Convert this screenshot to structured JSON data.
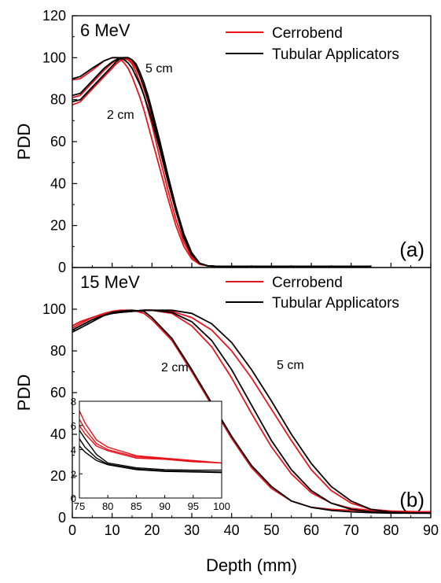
{
  "figure": {
    "xlabel": "Depth (mm)"
  },
  "colors": {
    "cerrobend": "#e8141b",
    "tubular": "#000000"
  },
  "chart_data": [
    {
      "type": "line",
      "panel_label": "(a)",
      "energy_label": "6 MeV",
      "xlabel": "",
      "ylabel": "PDD",
      "xlim": [
        0,
        90
      ],
      "ylim": [
        0,
        120
      ],
      "x_ticks": [],
      "y_ticks": [
        0,
        20,
        40,
        60,
        80,
        100,
        120
      ],
      "legend": {
        "position": "top-right",
        "entries": [
          "Cerrobend",
          "Tubular Applicators"
        ]
      },
      "annotations": [
        "5 cm",
        "2 cm"
      ],
      "series": [
        {
          "group": "Cerrobend",
          "color_key": "cerrobend",
          "x": [
            0,
            2,
            5,
            8,
            10,
            11,
            12,
            13,
            14,
            15,
            16,
            17,
            18,
            19,
            20,
            22,
            24,
            26,
            28,
            30,
            32,
            34,
            36,
            38,
            40,
            50,
            60,
            70,
            75
          ],
          "y": [
            89.5,
            90,
            94,
            98.5,
            100,
            100,
            99.5,
            97.5,
            95,
            91,
            86,
            81,
            75,
            68,
            61,
            47,
            33,
            20,
            10,
            4,
            1.5,
            0.8,
            0.6,
            0.5,
            0.5,
            0.5,
            0.5,
            0.5,
            0.5
          ]
        },
        {
          "group": "Cerrobend",
          "color_key": "cerrobend",
          "x": [
            0,
            2,
            5,
            8,
            10,
            11,
            12,
            13,
            14,
            15,
            16,
            17,
            18,
            19,
            20,
            22,
            24,
            26,
            28,
            30,
            32,
            34,
            36,
            38,
            40,
            50,
            60,
            70,
            75
          ],
          "y": [
            81,
            82,
            88,
            94,
            97.5,
            98.5,
            99.5,
            100,
            99.5,
            98,
            95,
            91,
            85,
            79,
            72,
            57,
            41,
            27,
            14,
            6,
            2,
            0.8,
            0.6,
            0.5,
            0.5,
            0.5,
            0.5,
            0.5,
            0.5
          ]
        },
        {
          "group": "Cerrobend",
          "color_key": "cerrobend",
          "x": [
            0,
            2,
            5,
            8,
            10,
            11,
            12,
            13,
            14,
            15,
            16,
            17,
            18,
            19,
            20,
            22,
            24,
            26,
            28,
            30,
            32,
            34,
            36,
            38,
            40,
            50,
            60,
            70,
            75
          ],
          "y": [
            77.5,
            79,
            85,
            91,
            95,
            97,
            98.5,
            99.5,
            99,
            97,
            93,
            88,
            82,
            75,
            68,
            52,
            37,
            23,
            12,
            5,
            1.5,
            0.8,
            0.6,
            0.5,
            0.5,
            0.5,
            0.5,
            0.5,
            0.5
          ]
        },
        {
          "group": "Tubular Applicators",
          "color_key": "tubular",
          "x": [
            0,
            2,
            5,
            8,
            10,
            11,
            12,
            13,
            14,
            15,
            16,
            17,
            18,
            19,
            20,
            22,
            24,
            26,
            28,
            30,
            32,
            34,
            36,
            38,
            40,
            50,
            60,
            70,
            75
          ],
          "y": [
            90,
            91,
            95,
            98.5,
            100,
            100,
            100,
            99,
            97.5,
            95,
            91,
            87,
            82,
            76,
            70,
            56,
            41,
            27,
            14,
            6,
            2,
            0.8,
            0.6,
            0.5,
            0.5,
            0.5,
            0.5,
            0.5,
            0.5
          ]
        },
        {
          "group": "Tubular Applicators",
          "color_key": "tubular",
          "x": [
            0,
            2,
            5,
            8,
            10,
            11,
            12,
            13,
            14,
            15,
            16,
            17,
            18,
            19,
            20,
            22,
            24,
            26,
            28,
            30,
            32,
            34,
            36,
            38,
            40,
            50,
            60,
            70,
            75
          ],
          "y": [
            82,
            83,
            89,
            95,
            98,
            99,
            100,
            100,
            100,
            99,
            97,
            93,
            88,
            82,
            75,
            60,
            44,
            29,
            16,
            7,
            2,
            0.8,
            0.6,
            0.5,
            0.5,
            0.5,
            0.5,
            0.5,
            0.5
          ]
        },
        {
          "group": "Tubular Applicators",
          "color_key": "tubular",
          "x": [
            0,
            2,
            5,
            8,
            10,
            11,
            12,
            13,
            14,
            15,
            16,
            17,
            18,
            19,
            20,
            22,
            24,
            26,
            28,
            30,
            32,
            34,
            36,
            38,
            40,
            50,
            60,
            70,
            75
          ],
          "y": [
            79,
            80,
            86,
            92,
            96,
            98,
            99.5,
            100,
            100,
            99,
            96,
            91,
            86,
            80,
            73,
            58,
            42,
            27,
            15,
            6,
            2,
            0.8,
            0.6,
            0.5,
            0.5,
            0.5,
            0.5,
            0.5,
            0.5
          ]
        }
      ]
    },
    {
      "type": "line",
      "panel_label": "(b)",
      "energy_label": "15 MeV",
      "xlabel": "Depth (mm)",
      "ylabel": "PDD",
      "xlim": [
        0,
        90
      ],
      "ylim": [
        0,
        120
      ],
      "x_ticks": [
        0,
        10,
        20,
        30,
        40,
        50,
        60,
        70,
        80,
        90
      ],
      "y_ticks": [
        0,
        20,
        40,
        60,
        80,
        100
      ],
      "legend": {
        "position": "top-right",
        "entries": [
          "Cerrobend",
          "Tubular Applicators"
        ]
      },
      "annotations": [
        "5 cm",
        "2 cm"
      ],
      "series": [
        {
          "group": "Cerrobend",
          "color_key": "cerrobend",
          "x": [
            0,
            2,
            5,
            8,
            10,
            12,
            15,
            18,
            20,
            25,
            30,
            35,
            40,
            45,
            50,
            55,
            60,
            65,
            70,
            75,
            80,
            85,
            90
          ],
          "y": [
            91,
            93,
            96,
            98,
            99,
            99.5,
            99.5,
            98,
            95,
            85,
            70,
            54,
            38,
            24,
            14,
            8,
            5,
            4,
            3.5,
            3,
            2.9,
            2.9,
            2.8
          ]
        },
        {
          "group": "Cerrobend",
          "color_key": "cerrobend",
          "x": [
            0,
            2,
            5,
            8,
            10,
            12,
            15,
            18,
            20,
            25,
            30,
            35,
            40,
            45,
            50,
            55,
            60,
            65,
            70,
            75,
            80,
            85,
            90
          ],
          "y": [
            92,
            94,
            96,
            97.5,
            98,
            98.5,
            99,
            99.5,
            99.5,
            98,
            92,
            82,
            67,
            50,
            34,
            21,
            12,
            7,
            4.5,
            3.5,
            3,
            2.9,
            2.8
          ]
        },
        {
          "group": "Cerrobend",
          "color_key": "cerrobend",
          "x": [
            0,
            2,
            5,
            8,
            10,
            12,
            15,
            18,
            20,
            25,
            30,
            35,
            40,
            45,
            50,
            55,
            60,
            65,
            70,
            75,
            80,
            85,
            90
          ],
          "y": [
            92,
            94,
            96,
            97.5,
            98,
            98.5,
            99,
            99.5,
            99.5,
            99,
            96,
            90,
            80,
            67,
            52,
            37,
            23,
            13,
            7,
            4,
            3.2,
            2.9,
            2.8
          ]
        },
        {
          "group": "Tubular Applicators",
          "color_key": "tubular",
          "x": [
            0,
            2,
            5,
            8,
            10,
            12,
            15,
            18,
            20,
            25,
            30,
            35,
            40,
            45,
            50,
            55,
            60,
            65,
            70,
            75,
            80,
            85,
            90
          ],
          "y": [
            89,
            91,
            94,
            97,
            98.5,
            99,
            99.5,
            99,
            96,
            86,
            71,
            55,
            39,
            25,
            15,
            8,
            5,
            3.5,
            2.8,
            2.4,
            2.2,
            2.2,
            2.2
          ]
        },
        {
          "group": "Tubular Applicators",
          "color_key": "tubular",
          "x": [
            0,
            2,
            5,
            8,
            10,
            12,
            15,
            18,
            20,
            25,
            30,
            35,
            40,
            45,
            50,
            55,
            60,
            65,
            70,
            75,
            80,
            85,
            90
          ],
          "y": [
            90,
            92,
            95,
            97,
            98,
            98.5,
            99,
            99.5,
            99.5,
            98.5,
            94,
            85,
            71,
            54,
            37,
            23,
            13,
            7,
            4,
            2.8,
            2.3,
            2.2,
            2.2
          ]
        },
        {
          "group": "Tubular Applicators",
          "color_key": "tubular",
          "x": [
            0,
            2,
            5,
            8,
            10,
            12,
            15,
            18,
            20,
            25,
            30,
            35,
            40,
            45,
            50,
            55,
            60,
            65,
            70,
            75,
            80,
            85,
            90
          ],
          "y": [
            90,
            92,
            95,
            97,
            98,
            98.5,
            99,
            99.5,
            99.5,
            99.5,
            98,
            93,
            84,
            71,
            56,
            40,
            26,
            15,
            8,
            4,
            2.6,
            2.3,
            2.2
          ]
        }
      ],
      "inset": {
        "xlim": [
          75,
          100
        ],
        "ylim": [
          0,
          8
        ],
        "x_ticks": [
          75,
          80,
          85,
          90,
          95,
          100
        ],
        "y_ticks": [
          0,
          2,
          4,
          6,
          8
        ],
        "series": [
          {
            "group": "Cerrobend",
            "color_key": "cerrobend",
            "x": [
              75,
              76,
              78,
              80,
              85,
              90,
              95,
              100
            ],
            "y": [
              7.2,
              6.2,
              4.8,
              4.2,
              3.5,
              3.3,
              3.1,
              2.9
            ]
          },
          {
            "group": "Cerrobend",
            "color_key": "cerrobend",
            "x": [
              75,
              76,
              78,
              80,
              85,
              90,
              95,
              100
            ],
            "y": [
              6.5,
              5.7,
              4.5,
              4.0,
              3.4,
              3.25,
              3.05,
              2.9
            ]
          },
          {
            "group": "Cerrobend",
            "color_key": "cerrobend",
            "x": [
              75,
              76,
              78,
              80,
              85,
              90,
              95,
              100
            ],
            "y": [
              6.0,
              5.3,
              4.3,
              3.9,
              3.3,
              3.2,
              3.0,
              2.9
            ]
          },
          {
            "group": "Tubular Applicators",
            "color_key": "tubular",
            "x": [
              75,
              76,
              78,
              80,
              85,
              90,
              95,
              100
            ],
            "y": [
              5.6,
              4.9,
              3.6,
              2.9,
              2.5,
              2.35,
              2.3,
              2.3
            ]
          },
          {
            "group": "Tubular Applicators",
            "color_key": "tubular",
            "x": [
              75,
              76,
              78,
              80,
              85,
              90,
              95,
              100
            ],
            "y": [
              4.9,
              4.2,
              3.3,
              2.8,
              2.4,
              2.25,
              2.2,
              2.15
            ]
          },
          {
            "group": "Tubular Applicators",
            "color_key": "tubular",
            "x": [
              75,
              76,
              78,
              80,
              85,
              90,
              95,
              100
            ],
            "y": [
              4.3,
              3.8,
              3.1,
              2.75,
              2.35,
              2.2,
              2.15,
              2.1
            ]
          }
        ]
      }
    }
  ]
}
